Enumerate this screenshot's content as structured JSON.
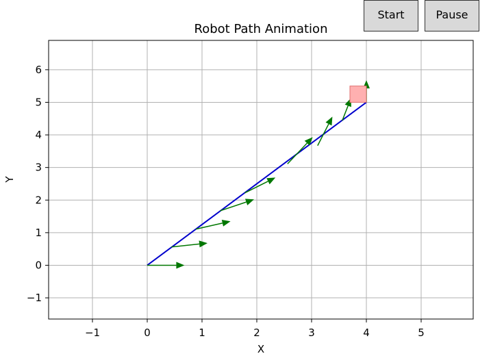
{
  "controls": {
    "start_label": "Start",
    "pause_label": "Pause"
  },
  "chart_data": {
    "type": "line",
    "title": "Robot Path Animation",
    "xlabel": "X",
    "ylabel": "Y",
    "xlim": [
      -1.8,
      5.95
    ],
    "ylim": [
      -1.65,
      6.9
    ],
    "xticks": [
      -1,
      0,
      1,
      2,
      3,
      4,
      5
    ],
    "yticks": [
      -1,
      0,
      1,
      2,
      3,
      4,
      5,
      6
    ],
    "grid": true,
    "series": [
      {
        "x": [
          0,
          4
        ],
        "y": [
          0,
          5
        ]
      }
    ],
    "colors": {
      "path": "#0000cc",
      "arrow": "#007700",
      "robot_fill": "#ffb0b0",
      "robot_edge": "#e07070",
      "grid": "#b0b0b0"
    },
    "orientation_arrows": [
      {
        "x": 0.0,
        "y": 0.0,
        "dx": 0.68,
        "dy": 0.0
      },
      {
        "x": 0.44,
        "y": 0.56,
        "dx": 0.66,
        "dy": 0.12
      },
      {
        "x": 0.89,
        "y": 1.11,
        "dx": 0.63,
        "dy": 0.24
      },
      {
        "x": 1.33,
        "y": 1.67,
        "dx": 0.62,
        "dy": 0.35
      },
      {
        "x": 1.78,
        "y": 2.22,
        "dx": 0.56,
        "dy": 0.47
      },
      {
        "x": 2.56,
        "y": 3.11,
        "dx": 0.46,
        "dy": 0.82
      },
      {
        "x": 3.11,
        "y": 3.67,
        "dx": 0.27,
        "dy": 0.89
      },
      {
        "x": 3.56,
        "y": 4.44,
        "dx": 0.16,
        "dy": 0.69
      },
      {
        "x": 4.0,
        "y": 5.0,
        "dx": 0.0,
        "dy": 0.68
      }
    ],
    "robot": {
      "x": 3.7,
      "y": 5.0,
      "w": 0.3,
      "h": 0.5
    }
  }
}
